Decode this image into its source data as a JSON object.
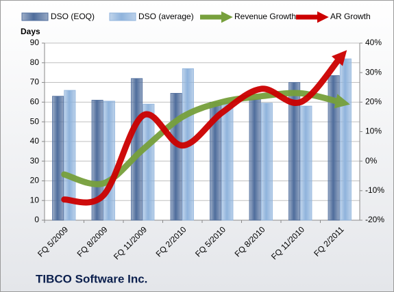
{
  "chart_data": {
    "type": "bar-line",
    "title": "TIBCO Software Inc.",
    "y_label": "Days",
    "categories": [
      "FQ 5/2009",
      "FQ 8/2009",
      "FQ 11/2009",
      "FQ 2/2010",
      "FQ 5/2010",
      "FQ 8/2010",
      "FQ 11/2010",
      "FQ 2/2011"
    ],
    "series": [
      {
        "name": "DSO (EOQ)",
        "type": "bar",
        "color": "#4f6d9c",
        "values": [
          63,
          61,
          72,
          64.5,
          60,
          61.5,
          70,
          73.5
        ]
      },
      {
        "name": "DSO (average)",
        "type": "bar",
        "color": "#8fb3dc",
        "values": [
          66,
          60.5,
          59,
          77,
          60,
          59.5,
          58,
          82
        ]
      },
      {
        "name": "Revenue Growth",
        "type": "line",
        "axis": "y2",
        "color": "#77a03c",
        "values": [
          -4.5,
          -7.5,
          4,
          15,
          20,
          22,
          23,
          20
        ]
      },
      {
        "name": "AR Growth",
        "type": "line",
        "axis": "y2",
        "color": "#cc0000",
        "values": [
          -13,
          -11.5,
          15.5,
          5.3,
          16.4,
          24.5,
          20,
          35
        ]
      }
    ],
    "ylim": [
      0,
      90
    ],
    "yticks": [
      0,
      10,
      20,
      30,
      40,
      50,
      60,
      70,
      80,
      90
    ],
    "y2lim": [
      -20,
      40
    ],
    "y2ticks": [
      {
        "value": -20,
        "label": "-20%"
      },
      {
        "value": -10,
        "label": "-10%"
      },
      {
        "value": 0,
        "label": "0%"
      },
      {
        "value": 10,
        "label": "10%"
      },
      {
        "value": 20,
        "label": "20%"
      },
      {
        "value": 30,
        "label": "30%"
      },
      {
        "value": 40,
        "label": "40%"
      }
    ],
    "grid": true,
    "legend": "top"
  }
}
